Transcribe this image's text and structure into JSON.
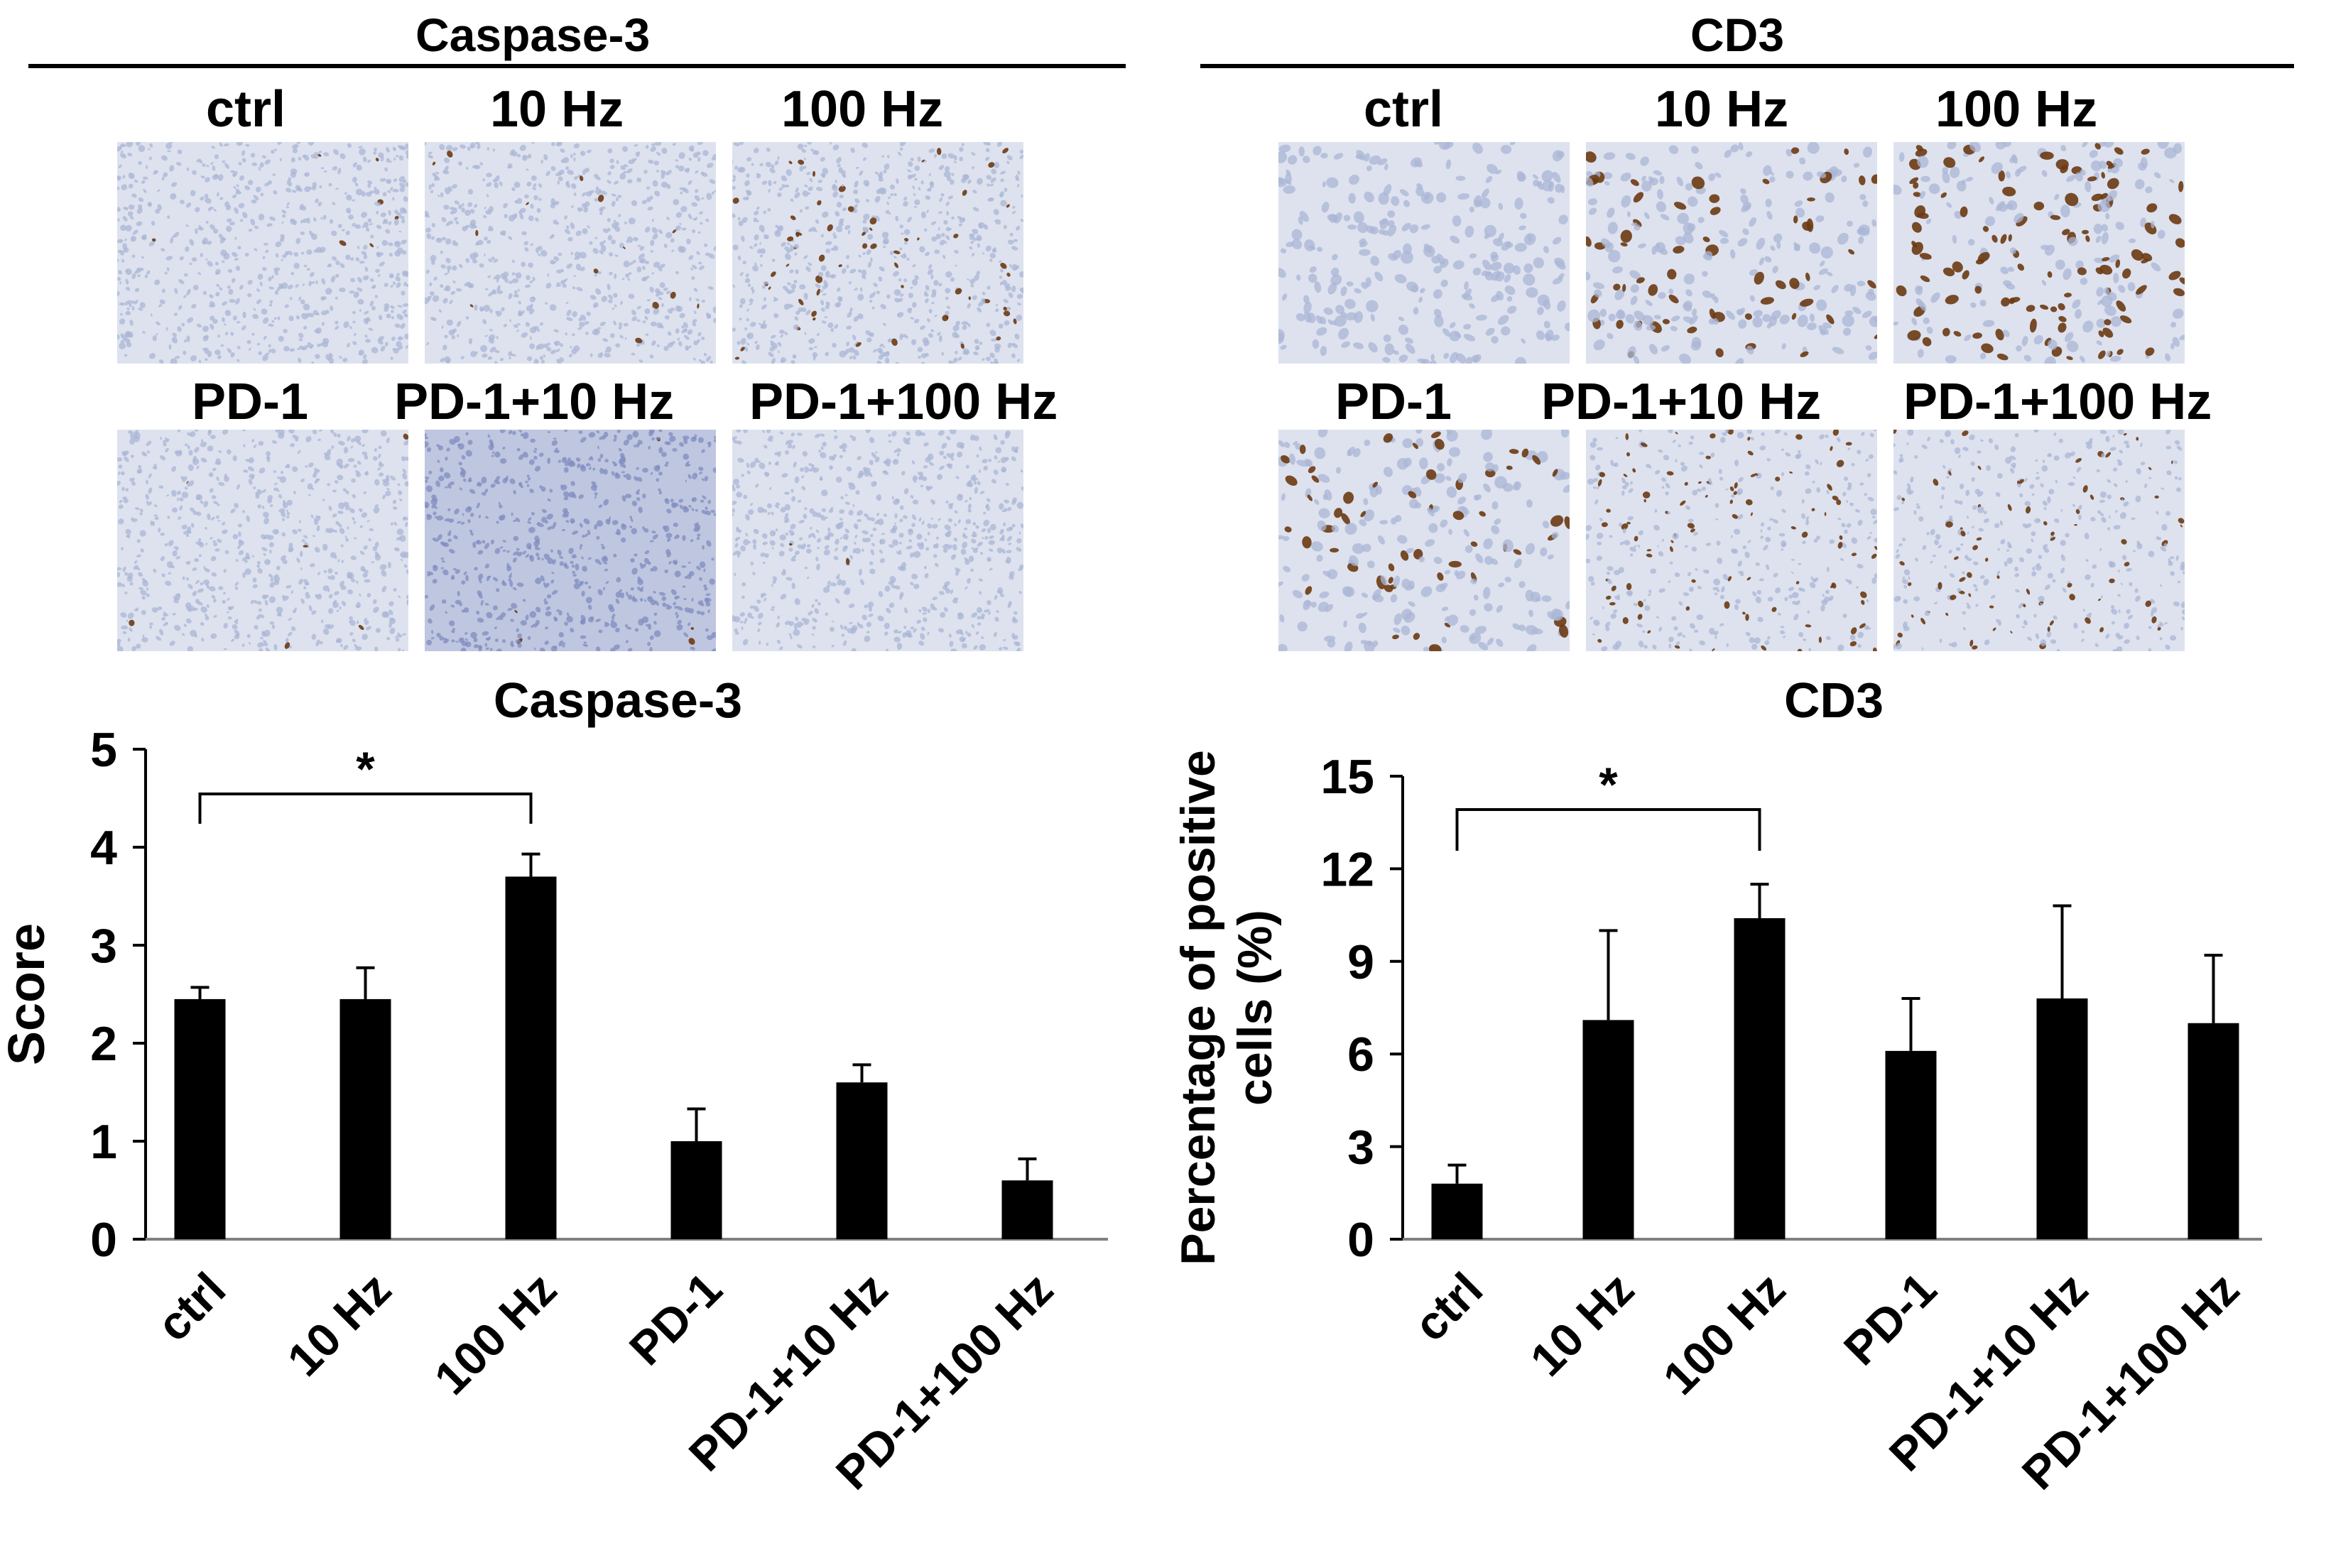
{
  "histology": {
    "left": {
      "title": "Caspase-3",
      "row1_labels": [
        "ctrl",
        "10 Hz",
        "100 Hz"
      ],
      "row2_labels": [
        "PD-1",
        "PD-1+10 Hz",
        "PD-1+100 Hz"
      ]
    },
    "right": {
      "title": "CD3",
      "row1_labels": [
        "ctrl",
        "10 Hz",
        "100 Hz"
      ],
      "row2_labels": [
        "PD-1",
        "PD-1+10 Hz",
        "PD-1+100 Hz"
      ]
    },
    "stain_colors": {
      "hematoxylin": "#a9b6d6",
      "background": "#dde2ee",
      "dab": "#6b3a12"
    }
  },
  "chart_data": [
    {
      "type": "bar",
      "title": "Caspase-3",
      "ylabel": "Score",
      "xlabel": "",
      "categories": [
        "ctrl",
        "10 Hz",
        "100 Hz",
        "PD-1",
        "PD-1+10 Hz",
        "PD-1+100 Hz"
      ],
      "values": [
        2.45,
        2.45,
        3.7,
        1.0,
        1.6,
        0.6
      ],
      "errors": [
        0.12,
        0.32,
        0.23,
        0.33,
        0.18,
        0.22
      ],
      "ylim": [
        0,
        5
      ],
      "yticks": [
        "0",
        "1",
        "2",
        "3",
        "4",
        "5"
      ],
      "significance": {
        "from": "ctrl",
        "to": "100 Hz",
        "label": "*"
      },
      "bar_color": "#000000",
      "grid": false
    },
    {
      "type": "bar",
      "title": "CD3",
      "ylabel": "Percentage of positive cells (%)",
      "ylabel_lines": [
        "Percentage of positive",
        "cells (%)"
      ],
      "xlabel": "",
      "categories": [
        "ctrl",
        "10 Hz",
        "100 Hz",
        "PD-1",
        "PD-1+10 Hz",
        "PD-1+100 Hz"
      ],
      "values": [
        1.8,
        7.1,
        10.4,
        6.1,
        7.8,
        7.0
      ],
      "errors": [
        0.6,
        2.9,
        1.1,
        1.7,
        3.0,
        2.2
      ],
      "ylim": [
        0,
        15
      ],
      "yticks": [
        "0",
        "3",
        "6",
        "9",
        "12",
        "15"
      ],
      "significance": {
        "from": "ctrl",
        "to": "100 Hz",
        "label": "*"
      },
      "bar_color": "#000000",
      "grid": false
    }
  ]
}
